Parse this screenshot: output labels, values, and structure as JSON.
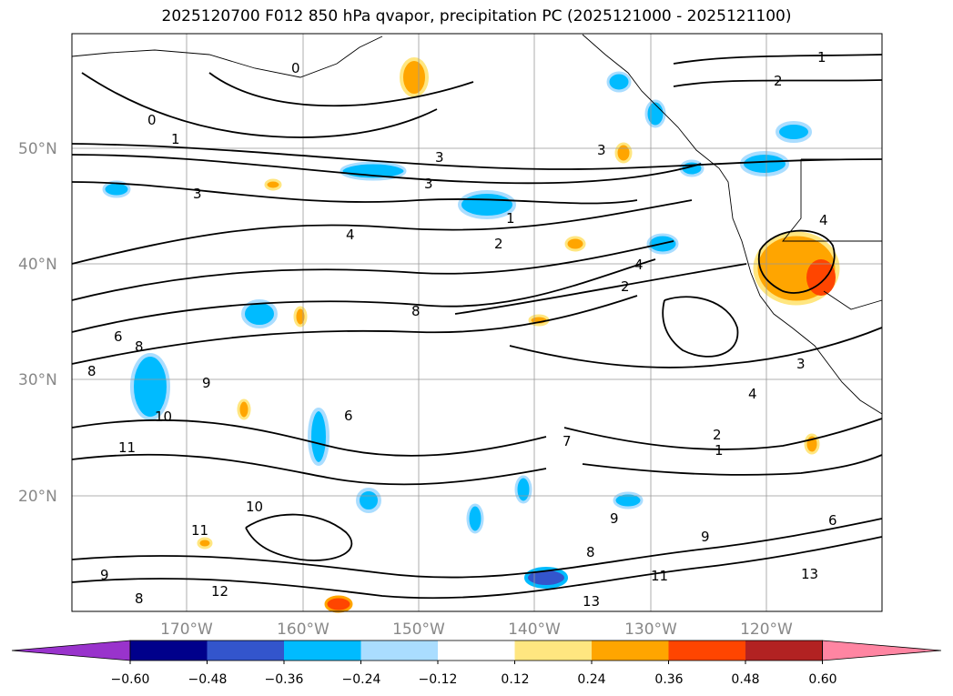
{
  "title": "2025120700 F012 850 hPa qvapor, precipitation PC (2025121000 - 2025121100)",
  "map": {
    "lat_labels": [
      "50°N",
      "40°N",
      "30°N",
      "20°N"
    ],
    "lon_labels": [
      "170°W",
      "160°W",
      "150°W",
      "140°W",
      "130°W",
      "120°W"
    ],
    "contour_labels": [
      "0",
      "1",
      "2",
      "3",
      "4",
      "3",
      "3",
      "1",
      "2",
      "4",
      "8",
      "6",
      "8",
      "8",
      "9",
      "10",
      "11",
      "10",
      "11",
      "9",
      "8",
      "12",
      "13",
      "11",
      "13",
      "3",
      "4",
      "2",
      "1",
      "6",
      "9",
      "9",
      "8",
      "7",
      "6",
      "4",
      "3",
      "2",
      "1",
      "0"
    ]
  },
  "colorbar": {
    "tick_labels": [
      "−0.60",
      "−0.48",
      "−0.36",
      "−0.24",
      "−0.12",
      "0.12",
      "0.24",
      "0.36",
      "0.48",
      "0.60"
    ],
    "colors": [
      "#9933cc",
      "#00008b",
      "#3355cc",
      "#00bbff",
      "#aaddff",
      "#ffffff",
      "#ffe680",
      "#ffa500",
      "#ff4500",
      "#b22222",
      "#ff85a2"
    ]
  }
}
